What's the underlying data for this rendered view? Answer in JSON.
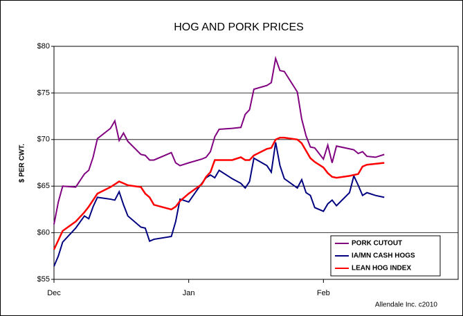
{
  "chart_data": {
    "type": "line",
    "title": "HOG AND PORK PRICES",
    "y_label": "$ PER CWT.",
    "source": "Allendale Inc. c2010",
    "x": [
      0,
      1,
      2,
      5,
      7,
      8,
      9,
      10,
      13,
      14,
      15,
      16,
      17,
      20,
      21,
      22,
      23,
      27,
      28,
      29,
      31,
      34,
      35,
      36,
      37,
      38,
      41,
      43,
      44,
      45,
      46,
      49,
      50,
      51,
      52,
      53,
      56,
      57,
      58,
      59,
      60,
      62,
      63,
      64,
      65,
      68,
      69,
      70,
      71,
      72,
      74,
      76
    ],
    "xlim": [
      0,
      93
    ],
    "xticks": [
      {
        "value": 0,
        "label": "Dec"
      },
      {
        "value": 31,
        "label": "Jan"
      },
      {
        "value": 62,
        "label": "Feb"
      }
    ],
    "ylim": [
      55,
      80
    ],
    "yticks": [
      {
        "value": 55,
        "label": "$55"
      },
      {
        "value": 60,
        "label": "$60"
      },
      {
        "value": 65,
        "label": "$65"
      },
      {
        "value": 70,
        "label": "$70"
      },
      {
        "value": 75,
        "label": "$75"
      },
      {
        "value": 80,
        "label": "$80"
      }
    ],
    "grid": true,
    "legend": "lower right",
    "series": [
      {
        "name": "PORK CUTOUT",
        "color": "#800080",
        "values": [
          60.9,
          63.3,
          65.0,
          64.9,
          66.3,
          66.7,
          68.1,
          70.1,
          71.2,
          72.0,
          69.9,
          70.7,
          69.8,
          68.4,
          68.3,
          67.8,
          67.8,
          68.6,
          67.5,
          67.2,
          67.5,
          67.9,
          68.1,
          68.7,
          70.3,
          71.1,
          71.2,
          71.3,
          72.7,
          73.2,
          75.4,
          75.8,
          76.1,
          78.7,
          77.4,
          77.3,
          75.1,
          72.2,
          70.4,
          69.2,
          69.1,
          67.9,
          69.4,
          67.5,
          69.3,
          69.0,
          68.9,
          68.5,
          68.7,
          68.2,
          68.1,
          68.4
        ]
      },
      {
        "name": "IA/MN CASH HOGS",
        "color": "#000080",
        "values": [
          56.4,
          57.5,
          59.0,
          60.5,
          61.8,
          61.5,
          62.8,
          63.8,
          63.6,
          63.5,
          64.4,
          63.0,
          61.8,
          60.6,
          60.5,
          59.1,
          59.3,
          59.6,
          61.2,
          63.6,
          63.3,
          65.3,
          65.9,
          66.2,
          65.9,
          66.7,
          65.8,
          65.3,
          64.8,
          65.5,
          68.0,
          67.2,
          66.5,
          69.7,
          67.2,
          65.8,
          64.8,
          65.7,
          64.3,
          64.0,
          62.7,
          62.3,
          63.1,
          63.5,
          62.9,
          64.3,
          66.1,
          65.1,
          64.0,
          64.3,
          64.0,
          63.8
        ]
      },
      {
        "name": "LEAN HOG INDEX",
        "color": "#ff0000",
        "values": [
          58.2,
          59.2,
          60.2,
          61.2,
          62.2,
          62.8,
          63.5,
          64.2,
          64.9,
          65.2,
          65.5,
          65.3,
          65.1,
          64.9,
          64.2,
          63.8,
          63.0,
          62.5,
          62.8,
          63.4,
          64.2,
          65.2,
          66.0,
          66.5,
          67.8,
          67.8,
          67.8,
          68.1,
          67.8,
          67.8,
          68.3,
          69.0,
          69.1,
          70.0,
          70.2,
          70.2,
          70.0,
          69.6,
          68.8,
          68.0,
          67.6,
          67.0,
          66.4,
          66.0,
          65.9,
          66.1,
          66.2,
          66.3,
          67.1,
          67.3,
          67.4,
          67.5
        ]
      }
    ]
  }
}
